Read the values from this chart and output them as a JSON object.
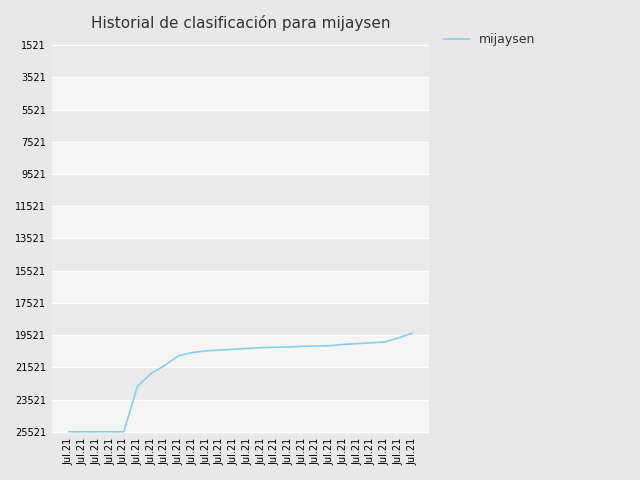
{
  "title": "Historial de clasificación para mijaysen",
  "legend_label": "mijaysen",
  "line_color": "#87CEEB",
  "outer_bg": "#E8E8E8",
  "band_colors": [
    "#EBEBEB",
    "#F5F5F5"
  ],
  "yticks": [
    1521,
    3521,
    5521,
    7521,
    9521,
    11521,
    13521,
    15521,
    17521,
    19521,
    21521,
    23521,
    25521
  ],
  "ymin": 1521,
  "ymax": 25521,
  "n_points": 26,
  "data_points": [
    25521,
    25521,
    25521,
    25521,
    25521,
    22700,
    21900,
    21400,
    20800,
    20600,
    20500,
    20450,
    20400,
    20350,
    20300,
    20280,
    20260,
    20220,
    20200,
    20180,
    20100,
    20050,
    20000,
    19950,
    19700,
    19400
  ],
  "xlabel": "Jul.21",
  "tick_fontsize": 7,
  "title_fontsize": 11,
  "legend_fontsize": 9
}
